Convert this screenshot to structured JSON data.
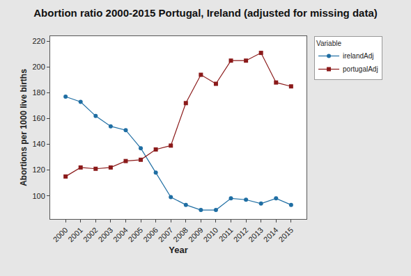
{
  "chart_data": {
    "type": "line",
    "title": "Abortion ratio 2000-2015 Portugal, Ireland (adjusted for missing data)",
    "xlabel": "Year",
    "ylabel": "Abortions per 1000 live births",
    "categories": [
      "2000",
      "2001",
      "2002",
      "2003",
      "2004",
      "2005",
      "2006",
      "2007",
      "2008",
      "2009",
      "2010",
      "2011",
      "2012",
      "2013",
      "2014",
      "2015"
    ],
    "series": [
      {
        "name": "irelandAdj",
        "color": "#1f6ea3",
        "marker": "circle",
        "values": [
          177,
          173,
          162,
          154,
          151,
          137,
          118,
          99,
          93,
          89,
          89,
          98,
          97,
          94,
          98,
          93
        ]
      },
      {
        "name": "portugalAdj",
        "color": "#8b1a1a",
        "marker": "square",
        "values": [
          115,
          122,
          121,
          122,
          127,
          128,
          136,
          139,
          172,
          194,
          187,
          205,
          205,
          211,
          188,
          185
        ]
      }
    ],
    "ylim": [
      82,
      224
    ],
    "yticks": [
      100,
      120,
      140,
      160,
      180,
      200,
      220
    ],
    "grid": false,
    "legend": "right",
    "legend_title": "Variable"
  }
}
